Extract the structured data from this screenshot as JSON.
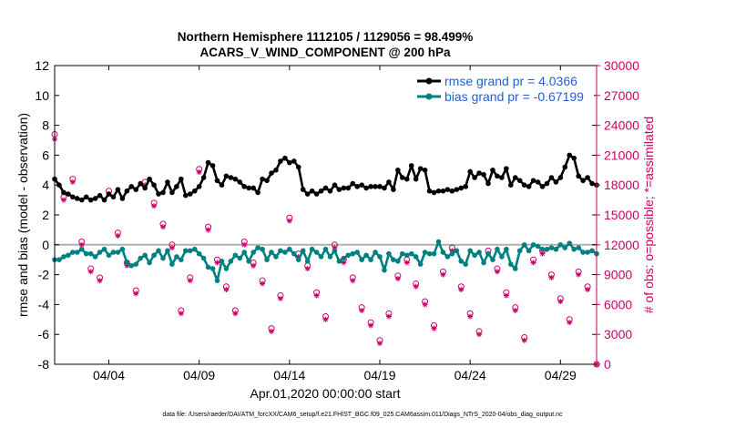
{
  "colors": {
    "rmse": "#000000",
    "bias": "#008080",
    "obs": "#cc0066",
    "legend_text": "#1f5fd6",
    "zero_line": "#b0b0b0"
  },
  "chart_data": {
    "type": "line",
    "title": "Northern Hemisphere 1112105 / 1129056 = 98.499%",
    "subtitle": "ACARS_V_WIND_COMPONENT @ 200 hPa",
    "xlabel": "Apr.01,2020 00:00:00 start",
    "ylabel": "rmse and bias (model - observation)",
    "ylabel_right": "# of obs: o=possible; *=assimilated",
    "ylim": [
      -8,
      12
    ],
    "ylim_right": [
      0,
      30000
    ],
    "yticks": [
      "-8",
      "-6",
      "-4",
      "-2",
      "0",
      "2",
      "4",
      "6",
      "8",
      "10",
      "12"
    ],
    "yticks_right": [
      "0",
      "3000",
      "6000",
      "9000",
      "12000",
      "15000",
      "18000",
      "21000",
      "24000",
      "27000",
      "30000"
    ],
    "xlim": [
      0,
      30
    ],
    "x_ticks": [
      {
        "day": 3,
        "label": "04/04"
      },
      {
        "day": 8,
        "label": "04/09"
      },
      {
        "day": 13,
        "label": "04/14"
      },
      {
        "day": 18,
        "label": "04/19"
      },
      {
        "day": 23,
        "label": "04/24"
      },
      {
        "day": 28,
        "label": "04/29"
      }
    ],
    "legend": [
      {
        "name": "rmse",
        "label": "rmse grand pr = 4.0366"
      },
      {
        "name": "bias",
        "label": "bias grand pr = -0.67199"
      }
    ],
    "x": [
      0.0,
      0.25,
      0.5,
      0.75,
      1.0,
      1.25,
      1.5,
      1.75,
      2.0,
      2.25,
      2.5,
      2.75,
      3.0,
      3.25,
      3.5,
      3.75,
      4.0,
      4.25,
      4.5,
      4.75,
      5.0,
      5.25,
      5.5,
      5.75,
      6.0,
      6.25,
      6.5,
      6.75,
      7.0,
      7.25,
      7.5,
      7.75,
      8.0,
      8.25,
      8.5,
      8.75,
      9.0,
      9.25,
      9.5,
      9.75,
      10.0,
      10.25,
      10.5,
      10.75,
      11.0,
      11.25,
      11.5,
      11.75,
      12.0,
      12.25,
      12.5,
      12.75,
      13.0,
      13.25,
      13.5,
      13.75,
      14.0,
      14.25,
      14.5,
      14.75,
      15.0,
      15.25,
      15.5,
      15.75,
      16.0,
      16.25,
      16.5,
      16.75,
      17.0,
      17.25,
      17.5,
      17.75,
      18.0,
      18.25,
      18.5,
      18.75,
      19.0,
      19.25,
      19.5,
      19.75,
      20.0,
      20.25,
      20.5,
      20.75,
      21.0,
      21.25,
      21.5,
      21.75,
      22.0,
      22.25,
      22.5,
      22.75,
      23.0,
      23.25,
      23.5,
      23.75,
      24.0,
      24.25,
      24.5,
      24.75,
      25.0,
      25.25,
      25.5,
      25.75,
      26.0,
      26.25,
      26.5,
      26.75,
      27.0,
      27.25,
      27.5,
      27.75,
      28.0,
      28.25,
      28.5,
      28.75,
      29.0,
      29.25,
      29.5,
      29.75,
      30.0
    ],
    "series": [
      {
        "name": "rmse",
        "values": [
          4.4,
          4.0,
          3.5,
          3.4,
          3.2,
          3.1,
          3.0,
          3.2,
          3.0,
          3.1,
          3.3,
          3.0,
          3.4,
          3.2,
          3.7,
          3.1,
          3.6,
          3.9,
          3.7,
          4.1,
          3.8,
          4.4,
          4.0,
          3.4,
          3.5,
          4.2,
          3.5,
          3.9,
          4.4,
          3.3,
          3.4,
          3.6,
          3.9,
          4.5,
          5.5,
          5.3,
          4.3,
          4.0,
          4.6,
          4.5,
          4.4,
          4.2,
          3.9,
          3.8,
          3.8,
          3.5,
          4.4,
          4.3,
          4.8,
          5.0,
          5.6,
          5.8,
          5.5,
          5.6,
          5.2,
          3.7,
          3.4,
          3.6,
          3.4,
          3.6,
          3.8,
          3.6,
          4.0,
          3.7,
          3.8,
          3.8,
          4.1,
          3.9,
          4.0,
          3.8,
          3.9,
          3.9,
          3.9,
          3.8,
          4.2,
          3.7,
          5.0,
          4.5,
          4.4,
          5.3,
          4.4,
          5.1,
          5.0,
          3.6,
          3.5,
          3.6,
          3.6,
          3.7,
          3.6,
          3.7,
          3.8,
          3.9,
          4.9,
          4.5,
          4.8,
          4.7,
          4.1,
          5.0,
          4.6,
          4.5,
          5.1,
          4.0,
          4.5,
          4.3,
          4.0,
          3.9,
          4.3,
          4.2,
          3.9,
          4.1,
          4.5,
          4.2,
          4.5,
          5.2,
          6.0,
          5.8,
          4.6,
          4.3,
          4.5,
          4.1,
          4.0
        ]
      },
      {
        "name": "bias",
        "values": [
          -1.0,
          -1.0,
          -0.8,
          -0.7,
          -0.5,
          -0.5,
          -0.3,
          -0.6,
          -0.6,
          -0.8,
          -0.5,
          -0.3,
          -0.7,
          -0.5,
          -0.5,
          -0.3,
          -1.2,
          -1.4,
          -1.3,
          -0.9,
          -0.7,
          -1.2,
          -0.7,
          -0.4,
          -0.9,
          -0.4,
          -1.3,
          -0.8,
          -1.0,
          -0.4,
          -0.4,
          -0.3,
          -0.6,
          -0.9,
          -1.5,
          -1.6,
          -2.4,
          -1.1,
          -1.6,
          -1.1,
          -0.7,
          -0.9,
          -0.5,
          -1.1,
          -0.5,
          -0.2,
          -0.3,
          -1.0,
          -0.5,
          -0.8,
          -0.4,
          -0.5,
          -0.3,
          -0.6,
          -1.0,
          -0.4,
          -1.1,
          -0.3,
          -0.5,
          -0.8,
          -0.3,
          -0.8,
          -0.4,
          -1.1,
          -0.9,
          -0.7,
          -0.6,
          -0.5,
          -1.0,
          -0.7,
          -1.0,
          -0.5,
          -0.8,
          -1.7,
          -0.6,
          -1.0,
          -1.1,
          -0.6,
          -0.7,
          -0.6,
          -0.8,
          -1.3,
          -0.5,
          -0.6,
          -0.6,
          0.2,
          -0.5,
          -0.8,
          -0.6,
          -0.4,
          -1.1,
          -1.3,
          -0.4,
          -0.7,
          -0.5,
          -1.2,
          -0.6,
          -1.0,
          -0.3,
          -0.8,
          -0.3,
          -1.3,
          -1.6,
          -0.4,
          0.0,
          -0.4,
          0.0,
          -0.1,
          -0.3,
          -0.3,
          -0.2,
          -0.3,
          0.0,
          -0.2,
          0.1,
          -0.3,
          -0.2,
          -0.5,
          -0.5,
          -0.4,
          -0.6
        ]
      }
    ],
    "obs_possible": {
      "x": [
        0.0,
        0.5,
        1.0,
        1.5,
        2.0,
        2.5,
        3.0,
        3.5,
        4.0,
        4.5,
        5.0,
        5.5,
        6.0,
        6.5,
        7.0,
        7.5,
        8.0,
        8.5,
        9.0,
        9.5,
        10.0,
        10.5,
        11.0,
        11.5,
        12.0,
        12.5,
        13.0,
        13.5,
        14.0,
        14.5,
        15.0,
        15.5,
        16.0,
        16.5,
        17.0,
        17.5,
        18.0,
        18.5,
        19.0,
        19.5,
        20.0,
        20.5,
        21.0,
        21.5,
        22.0,
        22.5,
        23.0,
        23.5,
        24.0,
        24.5,
        25.0,
        25.5,
        26.0,
        26.5,
        27.0,
        27.5,
        28.0,
        28.5,
        29.0,
        29.5,
        30.0
      ],
      "values": [
        23100,
        16800,
        18600,
        12300,
        9600,
        8700,
        17400,
        13200,
        10200,
        7400,
        18300,
        16200,
        14100,
        12000,
        5400,
        8700,
        19600,
        13800,
        10500,
        7800,
        5400,
        12300,
        10200,
        8400,
        3600,
        6900,
        14700,
        11100,
        9900,
        7200,
        4800,
        12000,
        10500,
        8700,
        5700,
        4200,
        2400,
        5100,
        8900,
        10500,
        8100,
        6300,
        3900,
        9300,
        11700,
        7800,
        5100,
        3300,
        11400,
        9600,
        7200,
        5700,
        2700,
        10500,
        11400,
        9000,
        6600,
        4500,
        9300,
        7800,
        0
      ]
    },
    "obs_assimilated": {
      "x": [
        0.0,
        0.5,
        1.0,
        1.5,
        2.0,
        2.5,
        3.0,
        3.5,
        4.0,
        4.5,
        5.0,
        5.5,
        6.0,
        6.5,
        7.0,
        7.5,
        8.0,
        8.5,
        9.0,
        9.5,
        10.0,
        10.5,
        11.0,
        11.5,
        12.0,
        12.5,
        13.0,
        13.5,
        14.0,
        14.5,
        15.0,
        15.5,
        16.0,
        16.5,
        17.0,
        17.5,
        18.0,
        18.5,
        19.0,
        19.5,
        20.0,
        20.5,
        21.0,
        21.5,
        22.0,
        22.5,
        23.0,
        23.5,
        24.0,
        24.5,
        25.0,
        25.5,
        26.0,
        26.5,
        27.0,
        27.5,
        28.0,
        28.5,
        29.0,
        29.5,
        30.0
      ],
      "values": [
        22600,
        16500,
        18300,
        12000,
        9300,
        8400,
        17100,
        12900,
        9900,
        7100,
        18000,
        15900,
        13800,
        11700,
        5100,
        8400,
        19300,
        13500,
        10200,
        7500,
        5100,
        12000,
        9900,
        8100,
        3300,
        6600,
        14400,
        10800,
        9600,
        6900,
        4500,
        11700,
        10200,
        8400,
        5400,
        3900,
        2100,
        4800,
        8600,
        10200,
        7800,
        6000,
        3600,
        9000,
        11400,
        7500,
        4800,
        3000,
        11100,
        9300,
        6900,
        5400,
        2400,
        10200,
        11100,
        8700,
        6300,
        4200,
        9000,
        7500,
        0
      ]
    }
  },
  "footer": {
    "datafile": "data file: /Users/raeder/DAI/ATM_forcXX/CAM6_setup/f.e21.FHIST_BGC.f09_025.CAM6assim.011/Diags_NTrS_2020-04/obs_diag_output.nc"
  }
}
